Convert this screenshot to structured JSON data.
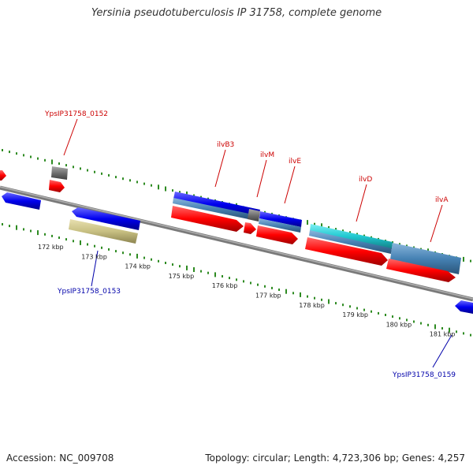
{
  "title": "Yersinia pseudotuberculosis IP 31758, complete genome",
  "footer": {
    "accession": "Accession: NC_009708",
    "info": "Topology: circular; Length: 4,723,306 bp; Genes: 4,257"
  },
  "scale_ticks": [
    "172 kbp",
    "173 kbp",
    "174 kbp",
    "175 kbp",
    "176 kbp",
    "177 kbp",
    "178 kbp",
    "179 kbp",
    "180 kbp",
    "181 kbp"
  ],
  "gene_labels": {
    "top": [
      "YpsIP31758_0152",
      "ilvB3",
      "ilvM",
      "ilvE",
      "ilvD",
      "ilvA"
    ],
    "bottom": [
      "YpsIP31758_0153",
      "YpsIP31758_0159"
    ]
  },
  "colors": {
    "label_top": "#cc0000",
    "label_bottom": "#0000aa",
    "backbone": "#808080",
    "gc_ticks": "#2e8b22",
    "cds_forward": "#ff0000",
    "cds_reverse": "#0000ee",
    "gene_steelblue": "#4682b4",
    "gene_cyan": "#20c8d0",
    "gene_khaki": "#c8c082",
    "gene_gray": "#707070"
  }
}
